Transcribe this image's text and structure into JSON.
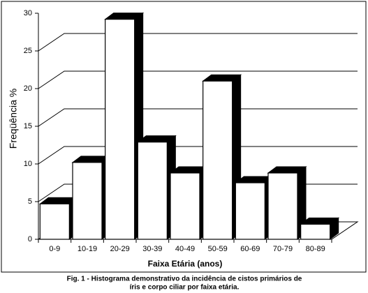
{
  "chart_data": {
    "type": "bar",
    "xlabel": "Faixa Etária (anos)",
    "ylabel": "Freqüência %",
    "caption": [
      "Fig. 1 - Histograma demonstrativo da incidência de cistos primários de",
      "íris e corpo ciliar por faixa etária."
    ],
    "categories": [
      "0-9",
      "10-19",
      "20-29",
      "30-39",
      "40-49",
      "50-59",
      "60-69",
      "70-79",
      "80-89"
    ],
    "values": [
      4.7,
      10.2,
      29.2,
      12.9,
      8.8,
      21.0,
      7.5,
      8.8,
      2.0
    ],
    "color": "#ffffff",
    "ylim": [
      0,
      30
    ],
    "yticks": [
      0,
      5,
      10,
      15,
      20,
      25,
      30
    ],
    "grid": true
  }
}
